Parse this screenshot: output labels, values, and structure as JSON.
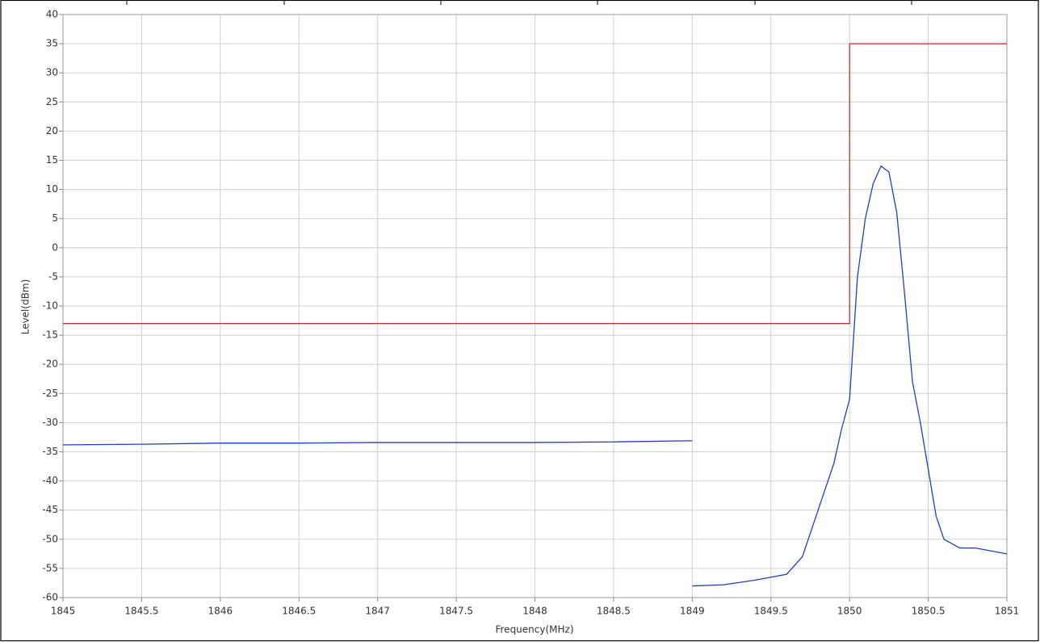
{
  "chart_data": {
    "type": "line",
    "xlabel": "Frequency(MHz)",
    "ylabel": "Level(dBm)",
    "xlim": [
      1845,
      1851
    ],
    "ylim": [
      -60,
      40
    ],
    "xticks": [
      1845,
      1845.5,
      1846,
      1846.5,
      1847,
      1847.5,
      1848,
      1848.5,
      1849,
      1849.5,
      1850,
      1850.5,
      1851
    ],
    "yticks": [
      -60,
      -55,
      -50,
      -45,
      -40,
      -35,
      -30,
      -25,
      -20,
      -15,
      -10,
      -5,
      0,
      5,
      10,
      15,
      20,
      25,
      30,
      35,
      40
    ],
    "grid": true,
    "series": [
      {
        "color": "#cc2a2a",
        "x": [
          1845,
          1850,
          1850,
          1851
        ],
        "values": [
          -13,
          -13,
          35,
          35
        ]
      },
      {
        "color": "#1f3fbf",
        "x": [
          1845,
          1845.5,
          1846,
          1846.5,
          1847,
          1847.5,
          1848,
          1848.5,
          1849,
          1849,
          1849,
          1849.2,
          1849.4,
          1849.6,
          1849.7,
          1849.8,
          1849.9,
          1849.95,
          1850,
          1850.05,
          1850.1,
          1850.15,
          1850.2,
          1850.25,
          1850.3,
          1850.35,
          1850.4,
          1850.45,
          1850.5,
          1850.55,
          1850.6,
          1850.7,
          1850.8,
          1850.9,
          1851
        ],
        "values": [
          -33.8,
          -33.7,
          -33.5,
          -33.5,
          -33.4,
          -33.4,
          -33.4,
          -33.3,
          -33.1,
          null,
          -58,
          -57.8,
          -57,
          -56,
          -53,
          -45,
          -37,
          -31,
          -26,
          -5,
          5,
          11,
          14,
          13,
          6,
          -8,
          -23,
          -30,
          -38,
          -46,
          -50,
          -51.5,
          -51.5,
          -52,
          -52.5
        ]
      }
    ]
  }
}
